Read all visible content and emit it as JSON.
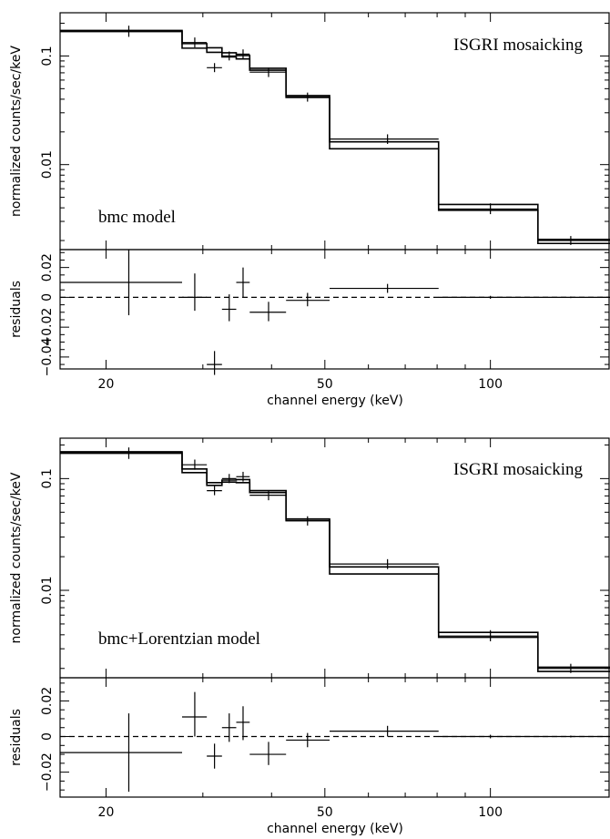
{
  "chart_data": [
    {
      "type": "line",
      "panel": "top",
      "x_scale": "log",
      "xlim": [
        16.5,
        165
      ],
      "xlabel": "channel energy (keV)",
      "x_ticks": [
        20,
        50,
        100
      ],
      "spectrum": {
        "ylabel": "normalized counts/sec/keV",
        "y_scale": "log",
        "ylim": [
          0.00165,
          0.25
        ],
        "y_ticks": [
          0.01,
          0.1
        ],
        "y_tick_labels": [
          "0.01",
          "0.1"
        ],
        "annotations": [
          "ISGRI mosaicking",
          "bmc model"
        ],
        "data": [
          {
            "x": 22.0,
            "xlo": 16.5,
            "xhi": 27.5,
            "y": 0.168,
            "ylo": 0.15,
            "yhi": 0.19
          },
          {
            "x": 29.0,
            "xlo": 27.5,
            "xhi": 30.5,
            "y": 0.133,
            "ylo": 0.12,
            "yhi": 0.148
          },
          {
            "x": 31.5,
            "xlo": 30.5,
            "xhi": 32.5,
            "y": 0.078,
            "ylo": 0.071,
            "yhi": 0.086
          },
          {
            "x": 33.5,
            "xlo": 32.5,
            "xhi": 34.5,
            "y": 0.1,
            "ylo": 0.091,
            "yhi": 0.11
          },
          {
            "x": 35.5,
            "xlo": 34.5,
            "xhi": 36.5,
            "y": 0.104,
            "ylo": 0.094,
            "yhi": 0.115
          },
          {
            "x": 39.5,
            "xlo": 36.5,
            "xhi": 42.5,
            "y": 0.071,
            "ylo": 0.064,
            "yhi": 0.078
          },
          {
            "x": 46.5,
            "xlo": 42.5,
            "xhi": 51.0,
            "y": 0.042,
            "ylo": 0.038,
            "yhi": 0.046
          },
          {
            "x": 65.0,
            "xlo": 51.0,
            "xhi": 80.5,
            "y": 0.0172,
            "ylo": 0.0155,
            "yhi": 0.019
          },
          {
            "x": 100.0,
            "xlo": 80.5,
            "xhi": 122.0,
            "y": 0.0039,
            "ylo": 0.0035,
            "yhi": 0.0044
          },
          {
            "x": 140.0,
            "xlo": 122.0,
            "xhi": 165.0,
            "y": 0.002,
            "ylo": 0.00182,
            "yhi": 0.0022
          }
        ],
        "model_a": [
          {
            "xlo": 16.5,
            "xhi": 27.5,
            "y": 0.172
          },
          {
            "xlo": 27.5,
            "xhi": 30.5,
            "y": 0.118
          },
          {
            "xlo": 30.5,
            "xhi": 32.5,
            "y": 0.108
          },
          {
            "xlo": 32.5,
            "xhi": 34.5,
            "y": 0.098
          },
          {
            "xlo": 34.5,
            "xhi": 36.5,
            "y": 0.094
          },
          {
            "xlo": 36.5,
            "xhi": 42.5,
            "y": 0.074
          },
          {
            "xlo": 42.5,
            "xhi": 51.0,
            "y": 0.0432
          },
          {
            "xlo": 51.0,
            "xhi": 80.5,
            "y": 0.0162
          },
          {
            "xlo": 80.5,
            "xhi": 122.0,
            "y": 0.0043
          },
          {
            "xlo": 122.0,
            "xhi": 165.0,
            "y": 0.00205
          }
        ],
        "model_b": [
          {
            "xlo": 16.5,
            "xhi": 27.5,
            "y": 0.168
          },
          {
            "xlo": 27.5,
            "xhi": 30.5,
            "y": 0.13
          },
          {
            "xlo": 30.5,
            "xhi": 32.5,
            "y": 0.119
          },
          {
            "xlo": 32.5,
            "xhi": 34.5,
            "y": 0.107
          },
          {
            "xlo": 34.5,
            "xhi": 36.5,
            "y": 0.101
          },
          {
            "xlo": 36.5,
            "xhi": 42.5,
            "y": 0.077
          },
          {
            "xlo": 42.5,
            "xhi": 51.0,
            "y": 0.0415
          },
          {
            "xlo": 51.0,
            "xhi": 80.5,
            "y": 0.014
          },
          {
            "xlo": 80.5,
            "xhi": 122.0,
            "y": 0.0038
          },
          {
            "xlo": 122.0,
            "xhi": 165.0,
            "y": 0.00188
          }
        ]
      },
      "residuals": {
        "ylabel": "residuals",
        "ylim": [
          -0.048,
          0.032
        ],
        "y_ticks": [
          -0.04,
          -0.02,
          0,
          0.02
        ],
        "y_tick_labels": [
          "−0.04",
          "−0.02",
          "0",
          "0.02"
        ],
        "zero_line": "dashed",
        "data": [
          {
            "x": 22.0,
            "xlo": 16.5,
            "xhi": 27.5,
            "y": 0.01,
            "ylo": -0.012,
            "yhi": 0.032
          },
          {
            "x": 29.0,
            "xlo": 27.5,
            "xhi": 30.5,
            "y": 0.0,
            "ylo": -0.009,
            "yhi": 0.016
          },
          {
            "x": 31.5,
            "xlo": 30.5,
            "xhi": 32.5,
            "y": -0.045,
            "ylo": -0.052,
            "yhi": -0.036
          },
          {
            "x": 33.5,
            "xlo": 32.5,
            "xhi": 34.5,
            "y": -0.008,
            "ylo": -0.016,
            "yhi": 0.002
          },
          {
            "x": 35.5,
            "xlo": 34.5,
            "xhi": 36.5,
            "y": 0.01,
            "ylo": 0.0,
            "yhi": 0.02
          },
          {
            "x": 39.5,
            "xlo": 36.5,
            "xhi": 42.5,
            "y": -0.01,
            "ylo": -0.016,
            "yhi": -0.003
          },
          {
            "x": 46.5,
            "xlo": 42.5,
            "xhi": 51.0,
            "y": -0.002,
            "ylo": -0.006,
            "yhi": 0.003
          },
          {
            "x": 65.0,
            "xlo": 51.0,
            "xhi": 80.5,
            "y": 0.006,
            "ylo": 0.003,
            "yhi": 0.009
          },
          {
            "x": 100.0,
            "xlo": 80.5,
            "xhi": 122.0,
            "y": 0.0,
            "ylo": -0.001,
            "yhi": 0.001
          },
          {
            "x": 140.0,
            "xlo": 122.0,
            "xhi": 165.0,
            "y": 0.0,
            "ylo": -0.0005,
            "yhi": 0.0005
          }
        ]
      }
    },
    {
      "type": "line",
      "panel": "bottom",
      "x_scale": "log",
      "xlim": [
        16.5,
        165
      ],
      "xlabel": "channel energy (keV)",
      "x_ticks": [
        20,
        50,
        100
      ],
      "spectrum": {
        "ylabel": "normalized counts/sec/keV",
        "y_scale": "log",
        "ylim": [
          0.00165,
          0.23
        ],
        "y_ticks": [
          0.01,
          0.1
        ],
        "y_tick_labels": [
          "0.01",
          "0.1"
        ],
        "annotations": [
          "ISGRI mosaicking",
          "bmc+Lorentzian model"
        ],
        "data": [
          {
            "x": 22.0,
            "xlo": 16.5,
            "xhi": 27.5,
            "y": 0.168,
            "ylo": 0.15,
            "yhi": 0.19
          },
          {
            "x": 29.0,
            "xlo": 27.5,
            "xhi": 30.5,
            "y": 0.133,
            "ylo": 0.12,
            "yhi": 0.148
          },
          {
            "x": 31.5,
            "xlo": 30.5,
            "xhi": 32.5,
            "y": 0.078,
            "ylo": 0.071,
            "yhi": 0.086
          },
          {
            "x": 33.5,
            "xlo": 32.5,
            "xhi": 34.5,
            "y": 0.1,
            "ylo": 0.091,
            "yhi": 0.11
          },
          {
            "x": 35.5,
            "xlo": 34.5,
            "xhi": 36.5,
            "y": 0.104,
            "ylo": 0.094,
            "yhi": 0.115
          },
          {
            "x": 39.5,
            "xlo": 36.5,
            "xhi": 42.5,
            "y": 0.071,
            "ylo": 0.064,
            "yhi": 0.078
          },
          {
            "x": 46.5,
            "xlo": 42.5,
            "xhi": 51.0,
            "y": 0.042,
            "ylo": 0.038,
            "yhi": 0.046
          },
          {
            "x": 65.0,
            "xlo": 51.0,
            "xhi": 80.5,
            "y": 0.0172,
            "ylo": 0.0155,
            "yhi": 0.019
          },
          {
            "x": 100.0,
            "xlo": 80.5,
            "xhi": 122.0,
            "y": 0.0039,
            "ylo": 0.0035,
            "yhi": 0.0044
          },
          {
            "x": 140.0,
            "xlo": 122.0,
            "xhi": 165.0,
            "y": 0.002,
            "ylo": 0.00182,
            "yhi": 0.0022
          }
        ],
        "model_a": [
          {
            "xlo": 16.5,
            "xhi": 27.5,
            "y": 0.174
          },
          {
            "xlo": 27.5,
            "xhi": 30.5,
            "y": 0.113
          },
          {
            "xlo": 30.5,
            "xhi": 32.5,
            "y": 0.087
          },
          {
            "xlo": 32.5,
            "xhi": 34.5,
            "y": 0.093
          },
          {
            "xlo": 34.5,
            "xhi": 36.5,
            "y": 0.092
          },
          {
            "xlo": 36.5,
            "xhi": 42.5,
            "y": 0.075
          },
          {
            "xlo": 42.5,
            "xhi": 51.0,
            "y": 0.0435
          },
          {
            "xlo": 51.0,
            "xhi": 80.5,
            "y": 0.0162
          },
          {
            "xlo": 80.5,
            "xhi": 122.0,
            "y": 0.0042
          },
          {
            "xlo": 122.0,
            "xhi": 165.0,
            "y": 0.00205
          }
        ],
        "model_b": [
          {
            "xlo": 16.5,
            "xhi": 27.5,
            "y": 0.17
          },
          {
            "xlo": 27.5,
            "xhi": 30.5,
            "y": 0.122
          },
          {
            "xlo": 30.5,
            "xhi": 32.5,
            "y": 0.092
          },
          {
            "xlo": 32.5,
            "xhi": 34.5,
            "y": 0.097
          },
          {
            "xlo": 34.5,
            "xhi": 36.5,
            "y": 0.098
          },
          {
            "xlo": 36.5,
            "xhi": 42.5,
            "y": 0.078
          },
          {
            "xlo": 42.5,
            "xhi": 51.0,
            "y": 0.042
          },
          {
            "xlo": 51.0,
            "xhi": 80.5,
            "y": 0.014
          },
          {
            "xlo": 80.5,
            "xhi": 122.0,
            "y": 0.0038
          },
          {
            "xlo": 122.0,
            "xhi": 165.0,
            "y": 0.00188
          }
        ]
      },
      "residuals": {
        "ylabel": "residuals",
        "ylim": [
          -0.034,
          0.033
        ],
        "y_ticks": [
          -0.02,
          0,
          0.02
        ],
        "y_tick_labels": [
          "−0.02",
          "0",
          "0.02"
        ],
        "zero_line": "dashed",
        "data": [
          {
            "x": 22.0,
            "xlo": 16.5,
            "xhi": 27.5,
            "y": -0.009,
            "ylo": -0.031,
            "yhi": 0.013
          },
          {
            "x": 29.0,
            "xlo": 27.5,
            "xhi": 30.5,
            "y": 0.011,
            "ylo": 0.0,
            "yhi": 0.025
          },
          {
            "x": 31.5,
            "xlo": 30.5,
            "xhi": 32.5,
            "y": -0.011,
            "ylo": -0.018,
            "yhi": -0.004
          },
          {
            "x": 33.5,
            "xlo": 32.5,
            "xhi": 34.5,
            "y": 0.005,
            "ylo": -0.003,
            "yhi": 0.013
          },
          {
            "x": 35.5,
            "xlo": 34.5,
            "xhi": 36.5,
            "y": 0.008,
            "ylo": -0.002,
            "yhi": 0.017
          },
          {
            "x": 39.5,
            "xlo": 36.5,
            "xhi": 42.5,
            "y": -0.01,
            "ylo": -0.016,
            "yhi": -0.003
          },
          {
            "x": 46.5,
            "xlo": 42.5,
            "xhi": 51.0,
            "y": -0.002,
            "ylo": -0.006,
            "yhi": 0.002
          },
          {
            "x": 65.0,
            "xlo": 51.0,
            "xhi": 80.5,
            "y": 0.003,
            "ylo": 0.0,
            "yhi": 0.006
          },
          {
            "x": 100.0,
            "xlo": 80.5,
            "xhi": 122.0,
            "y": 0.0,
            "ylo": -0.001,
            "yhi": 0.001
          },
          {
            "x": 140.0,
            "xlo": 122.0,
            "xhi": 165.0,
            "y": 0.0,
            "ylo": -0.0005,
            "yhi": 0.0005
          }
        ]
      }
    }
  ]
}
